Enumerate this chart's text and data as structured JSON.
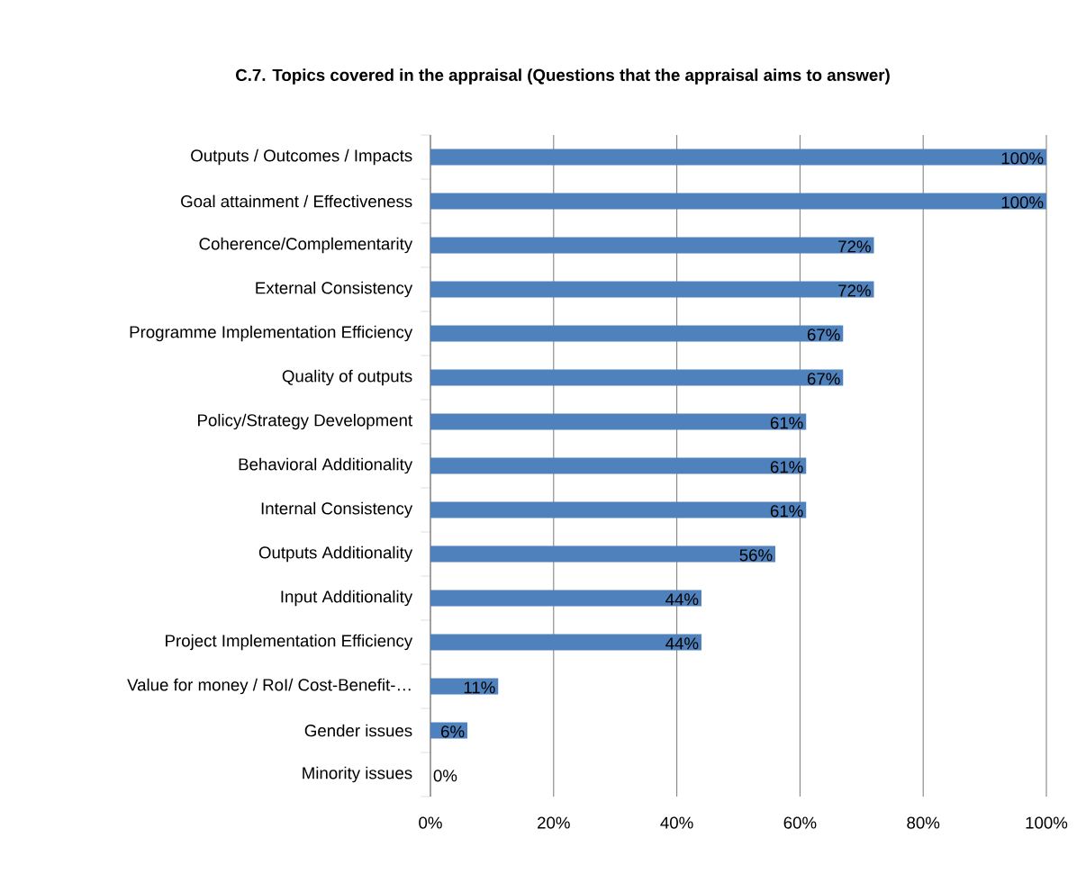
{
  "chart_data": {
    "type": "bar",
    "orientation": "horizontal",
    "title": "C.7. Topics covered in the appraisal (Questions that the appraisal aims to answer)",
    "categories": [
      "Outputs / Outcomes / Impacts",
      "Goal attainment / Effectiveness",
      "Coherence/Complementarity",
      "External Consistency",
      "Programme Implementation Efficiency",
      "Quality of outputs",
      "Policy/Strategy Development",
      "Behavioral Additionality",
      "Internal Consistency",
      "Outputs Additionality",
      "Input Additionality",
      "Project Implementation Efficiency",
      "Value for money / RoI/ Cost-Benefit-…",
      "Gender issues",
      "Minority issues"
    ],
    "values": [
      100,
      100,
      72,
      72,
      67,
      67,
      61,
      61,
      61,
      56,
      44,
      44,
      11,
      6,
      0
    ],
    "value_labels": [
      "100%",
      "100%",
      "72%",
      "72%",
      "67%",
      "67%",
      "61%",
      "61%",
      "61%",
      "56%",
      "44%",
      "44%",
      "11%",
      "6%",
      "0%"
    ],
    "color": "#4f81bd",
    "xlim": [
      0,
      100
    ],
    "xticks": [
      {
        "value": 0,
        "label": "0%"
      },
      {
        "value": 20,
        "label": "20%"
      },
      {
        "value": 40,
        "label": "40%"
      },
      {
        "value": 60,
        "label": "60%"
      },
      {
        "value": 80,
        "label": "80%"
      },
      {
        "value": 100,
        "label": "100%"
      }
    ],
    "grid": "x"
  }
}
